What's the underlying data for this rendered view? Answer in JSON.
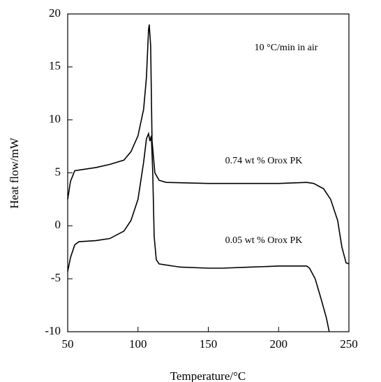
{
  "chart_data": {
    "type": "line",
    "xlabel": "Temperature/°C",
    "ylabel": "Heat flow/mW",
    "annotations": [
      "10 °C/min in air"
    ],
    "xlim": [
      50,
      250
    ],
    "xticks": [
      50,
      100,
      150,
      200,
      250
    ],
    "ylim": [
      -10,
      20
    ],
    "yticks": [
      -10,
      -5,
      0,
      5,
      10,
      15,
      20
    ],
    "color": "#000000",
    "series": [
      {
        "name": "0.74 wt % Orox PK",
        "x": [
          50,
          52,
          55,
          60,
          70,
          80,
          90,
          95,
          100,
          104,
          106,
          107.5,
          108,
          109,
          110,
          112,
          115,
          120,
          150,
          200,
          220,
          225,
          232,
          237,
          242,
          245,
          248,
          250
        ],
        "values": [
          2.5,
          4.2,
          5.2,
          5.3,
          5.5,
          5.8,
          6.2,
          7,
          8.5,
          11,
          14,
          18.5,
          19,
          17,
          8,
          5,
          4.3,
          4.1,
          4,
          4,
          4.1,
          4,
          3.5,
          2.5,
          0.5,
          -2,
          -3.5,
          -3.6
        ]
      },
      {
        "name": "0.05 wt % Orox PK",
        "x": [
          50,
          52,
          55,
          58,
          70,
          80,
          90,
          95,
          100,
          104,
          106,
          107.5,
          108.5,
          109.5,
          110.5,
          111.5,
          113,
          115,
          130,
          150,
          160,
          180,
          200,
          220,
          222,
          226,
          230,
          234,
          236
        ],
        "values": [
          -4.3,
          -3,
          -1.8,
          -1.5,
          -1.4,
          -1.2,
          -0.5,
          0.5,
          2.5,
          6,
          8.2,
          8.7,
          8,
          8.5,
          5,
          -1,
          -3.2,
          -3.6,
          -3.9,
          -4,
          -4,
          -3.9,
          -3.8,
          -3.8,
          -4,
          -5,
          -6.8,
          -8.7,
          -10
        ]
      }
    ]
  }
}
